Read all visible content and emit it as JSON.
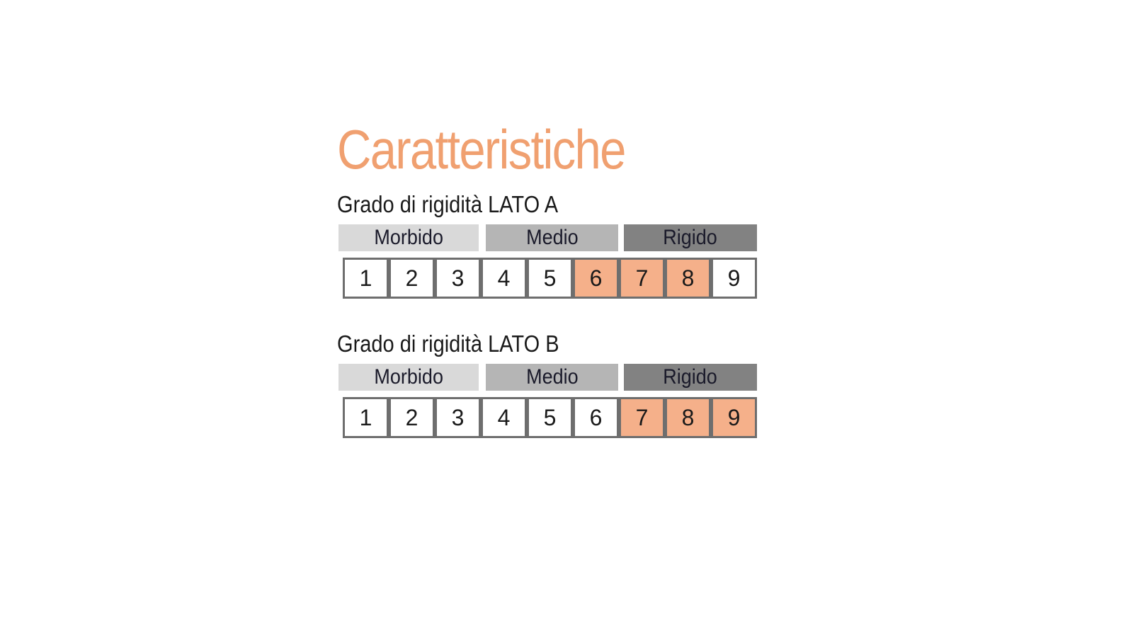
{
  "title": "Caratteristiche",
  "accent_color": "#f0a070",
  "highlight_color": "#f5b08a",
  "scales": [
    {
      "label": "Grado di rigidità LATO A",
      "categories": [
        "Morbido",
        "Medio",
        "Rigido"
      ],
      "values": [
        "1",
        "2",
        "3",
        "4",
        "5",
        "6",
        "7",
        "8",
        "9"
      ],
      "highlighted": [
        6,
        7,
        8
      ]
    },
    {
      "label": "Grado di rigidità LATO B",
      "categories": [
        "Morbido",
        "Medio",
        "Rigido"
      ],
      "values": [
        "1",
        "2",
        "3",
        "4",
        "5",
        "6",
        "7",
        "8",
        "9"
      ],
      "highlighted": [
        7,
        8,
        9
      ]
    }
  ]
}
